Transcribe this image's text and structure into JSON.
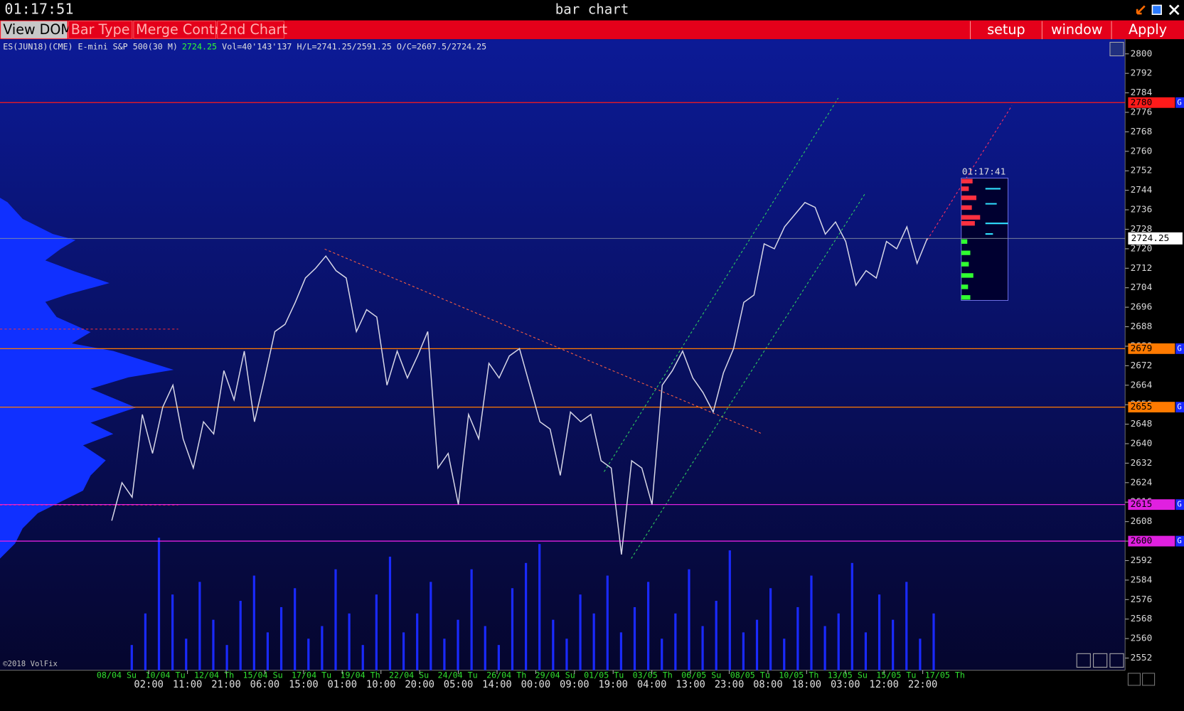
{
  "window": {
    "clock": "01:17:51",
    "title": "bar chart"
  },
  "toolbar": {
    "tabs": [
      "View DOM",
      "Bar Type",
      "Merge Contr",
      "2nd Chart"
    ],
    "buttons": [
      "setup",
      "window",
      "Apply"
    ]
  },
  "info": {
    "symbol": "ES(JUN18)(CME) E-mini S&P 500(30 M)",
    "last": "2724.25",
    "stats": "Vol=40'143'137 H/L=2741.25/2591.25 O/C=2607.5/2724.25"
  },
  "copyright": "©2018 VolFix",
  "chart_data": {
    "type": "line",
    "ylim": [
      2547,
      2806
    ],
    "yticks": [
      2552,
      2560,
      2568,
      2576,
      2584,
      2592,
      2600,
      2608,
      2616,
      2624,
      2632,
      2640,
      2648,
      2656,
      2664,
      2672,
      2680,
      2688,
      2696,
      2704,
      2712,
      2720,
      2728,
      2736,
      2744,
      2752,
      2760,
      2768,
      2776,
      2784,
      2792,
      2800
    ],
    "y2lim": [
      0,
      100
    ],
    "last_price": 2724.25,
    "dom_time": "01:17:41",
    "level_flag": "G",
    "levels": [
      {
        "value": 2780,
        "color": "#ff1a1a"
      },
      {
        "value": 2679,
        "color": "#ff7a00"
      },
      {
        "value": 2655,
        "color": "#ff7a00"
      },
      {
        "value": 2615,
        "color": "#e020e0"
      },
      {
        "value": 2600,
        "color": "#e020e0"
      }
    ],
    "date_labels": [
      "08/04 Su",
      "10/04 Tu",
      "12/04 Th",
      "15/04 Su",
      "17/04 Tu",
      "19/04 Th",
      "22/04 Su",
      "24/04 Tu",
      "26/04 Th",
      "29/04 Su",
      "01/05 Tu",
      "03/05 Th",
      "06/05 Su",
      "08/05 Tu",
      "10/05 Th",
      "13/05 Su",
      "15/05 Tu",
      "17/05 Th"
    ],
    "time_labels": [
      "02:00",
      "11:00",
      "21:00",
      "06:00",
      "15:00",
      "01:00",
      "10:00",
      "20:00",
      "05:00",
      "14:00",
      "00:00",
      "09:00",
      "19:00",
      "04:00",
      "13:00",
      "23:00",
      "08:00",
      "18:00",
      "03:00",
      "12:00",
      "22:00"
    ],
    "series": [
      {
        "color": "#d8d8e8",
        "values": [
          2608.4,
          2624,
          2618,
          2652,
          2636,
          2655,
          2664,
          2642,
          2630,
          2649,
          2644,
          2670,
          2658,
          2678,
          2649,
          2667,
          2686,
          2689,
          2698,
          2708,
          2712,
          2717,
          2711,
          2708,
          2686,
          2695,
          2692,
          2664,
          2678,
          2667,
          2676,
          2686,
          2630,
          2636,
          2615,
          2652,
          2642,
          2673,
          2667,
          2676,
          2679,
          2664,
          2649,
          2646,
          2627,
          2653,
          2649,
          2652,
          2633,
          2630,
          2594.5,
          2633,
          2630,
          2615,
          2664,
          2670,
          2678,
          2667,
          2661,
          2653,
          2669,
          2679,
          2698,
          2701,
          2722,
          2720,
          2729,
          2734,
          2739,
          2737,
          2726,
          2731,
          2723,
          2705,
          2711,
          2708,
          2723,
          2720,
          2729,
          2714,
          2724.25
        ]
      },
      {
        "color": "#1a2aff",
        "axis": "y2",
        "values": [
          4,
          9,
          21,
          12,
          5,
          14,
          8,
          4,
          11,
          15,
          6,
          10,
          13,
          5,
          7,
          16,
          9,
          4,
          12,
          18,
          6,
          9,
          14,
          5,
          8,
          16,
          7,
          4,
          13,
          17,
          20,
          8,
          5,
          12,
          9,
          15,
          6,
          10,
          14,
          5,
          9,
          16,
          7,
          11,
          19,
          6,
          8,
          13,
          5,
          10,
          15,
          7,
          9,
          17,
          6,
          12,
          8,
          14,
          5,
          9
        ]
      }
    ]
  }
}
